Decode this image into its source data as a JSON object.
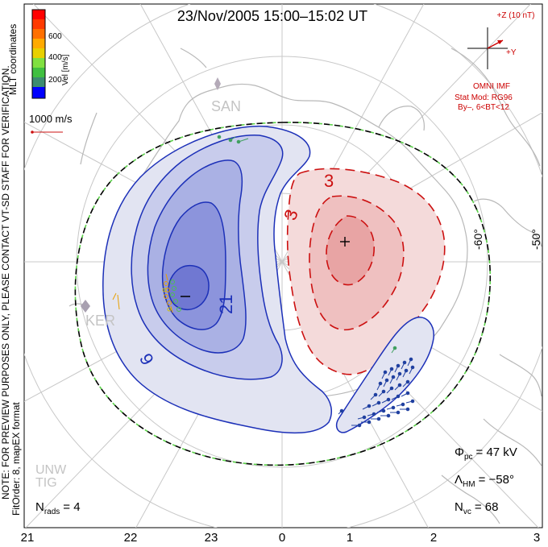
{
  "title": "23/Nov/2005 15:00–15:02 UT",
  "colorbar": {
    "label": "Vel [m/s]",
    "ticks": [
      "600",
      "400",
      "200"
    ],
    "colors": [
      "#ff0000",
      "#ff6a00",
      "#ffaa00",
      "#e8d000",
      "#80e040",
      "#40c040",
      "#3c8c70",
      "#3050c8",
      "#0000ff"
    ]
  },
  "side_label": "MLT coordinates",
  "watermark": "NOTE: FOR PREVIEW PURPOSES ONLY, PLEASE CONTACT VT-SD STAFF FOR VERIFICATION.",
  "fit_info": "FitOrder: 8, mapEX format",
  "scale_label": "1000 m/s",
  "imf": {
    "bz_label": "+Z (10 nT)",
    "by_label": "+Y",
    "source": "OMNI IMF",
    "model_line1": "Stat Mod: RG96",
    "model_line2": "By–, 6<BT<12"
  },
  "stations": [
    "SAN",
    "KER",
    "UNW",
    "TIG"
  ],
  "contour_labels": [
    "3",
    "3",
    "9",
    "21"
  ],
  "lat_labels": [
    "-60°",
    "-50°"
  ],
  "stats": {
    "phi_pc_sym": "Φ",
    "phi_pc_sub": "pc",
    "phi_pc_val": "= 47 kV",
    "lambda_sym": "Λ",
    "lambda_sub": "HM",
    "lambda_val": "= −58°",
    "nvc_sym": "N",
    "nvc_sub": "vc",
    "nvc_val": "= 68",
    "nrads_sym": "N",
    "nrads_sub": "rads",
    "nrads_val": "= 4"
  },
  "mlt_axis": [
    "21",
    "22",
    "23",
    "0",
    "1",
    "2",
    "3"
  ],
  "colors": {
    "negative_cell": "#1c30b8",
    "positive_cell": "#cc1010",
    "imf_label": "#cc0000"
  }
}
